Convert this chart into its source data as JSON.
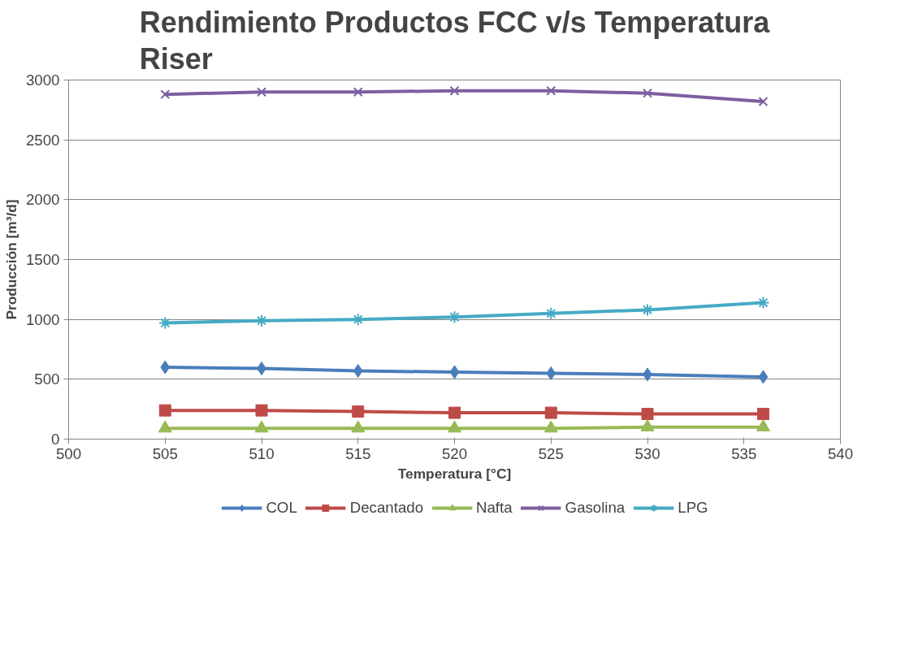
{
  "chart_data": {
    "type": "line",
    "title": "Rendimiento Productos FCC v/s Temperatura Riser",
    "xlabel": "Temperatura [°C]",
    "ylabel": "Producción [m³/d]",
    "x": [
      505,
      510,
      515,
      520,
      525,
      530,
      536
    ],
    "xlim": [
      500,
      540
    ],
    "xticks": [
      500,
      505,
      510,
      515,
      520,
      525,
      530,
      535,
      540
    ],
    "ylim": [
      0,
      3000
    ],
    "yticks": [
      0,
      500,
      1000,
      1500,
      2000,
      2500,
      3000
    ],
    "grid": "y",
    "legend": "bottom",
    "series": [
      {
        "name": "COL",
        "color": "#4a7ebb",
        "marker": "diamond",
        "values": [
          600,
          590,
          570,
          560,
          550,
          540,
          520
        ]
      },
      {
        "name": "Decantado",
        "color": "#be4b48",
        "marker": "square",
        "values": [
          240,
          240,
          230,
          220,
          220,
          210,
          210
        ]
      },
      {
        "name": "Nafta",
        "color": "#98b954",
        "marker": "triangle",
        "values": [
          90,
          90,
          90,
          90,
          90,
          100,
          100
        ]
      },
      {
        "name": "Gasolina",
        "color": "#7d5fa0",
        "marker": "x",
        "values": [
          2880,
          2900,
          2900,
          2910,
          2910,
          2890,
          2820
        ]
      },
      {
        "name": "LPG",
        "color": "#46aac5",
        "marker": "cross",
        "values": [
          970,
          990,
          1000,
          1020,
          1050,
          1080,
          1140
        ]
      }
    ]
  }
}
